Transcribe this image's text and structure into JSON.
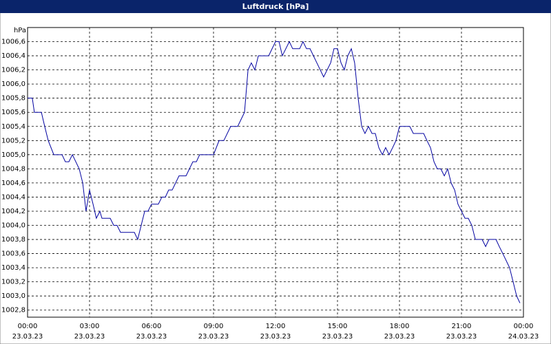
{
  "chart_data": {
    "type": "line",
    "title": "Luftdruck [hPa]",
    "y_label": "hPa",
    "x": [
      0,
      0.23,
      0.33,
      0.67,
      0.83,
      1,
      1.27,
      1.67,
      1.83,
      2,
      2.17,
      2.5,
      2.67,
      2.83,
      3,
      3.17,
      3.33,
      3.5,
      3.6,
      4,
      4.17,
      4.33,
      4.5,
      5.17,
      5.33,
      5.67,
      5.83,
      6,
      6.33,
      6.5,
      6.67,
      6.83,
      7,
      7.33,
      7.67,
      8,
      8.17,
      8.33,
      9,
      9.27,
      9.5,
      9.83,
      10.17,
      10.5,
      10.67,
      10.83,
      11,
      11.17,
      11.67,
      12,
      12.17,
      12.33,
      12.67,
      12.83,
      13.17,
      13.33,
      13.5,
      13.67,
      14,
      14.33,
      14.67,
      14.83,
      15,
      15.17,
      15.33,
      15.5,
      15.67,
      15.83,
      16,
      16.17,
      16.33,
      16.5,
      16.67,
      16.83,
      17,
      17.17,
      17.33,
      17.5,
      17.67,
      17.83,
      18,
      18.5,
      18.67,
      19.17,
      19.33,
      19.5,
      19.67,
      19.83,
      20,
      20.17,
      20.33,
      20.5,
      20.67,
      20.83,
      21,
      21.17,
      21.33,
      21.5,
      21.67,
      22,
      22.17,
      22.33,
      22.67,
      22.83,
      23,
      23.33,
      23.5,
      23.67,
      23.83
    ],
    "series": [
      {
        "color": "#0000a0",
        "values": [
          1005.8,
          1005.8,
          1005.6,
          1005.6,
          1005.4,
          1005.2,
          1005.0,
          1005.0,
          1004.9,
          1004.9,
          1005.0,
          1004.8,
          1004.6,
          1004.2,
          1004.5,
          1004.3,
          1004.1,
          1004.2,
          1004.1,
          1004.1,
          1004.0,
          1004.0,
          1003.9,
          1003.9,
          1003.8,
          1004.2,
          1004.2,
          1004.3,
          1004.3,
          1004.4,
          1004.4,
          1004.5,
          1004.5,
          1004.7,
          1004.7,
          1004.9,
          1004.9,
          1005.0,
          1005.0,
          1005.2,
          1005.2,
          1005.4,
          1005.4,
          1005.6,
          1006.2,
          1006.3,
          1006.2,
          1006.4,
          1006.4,
          1006.6,
          1006.6,
          1006.4,
          1006.6,
          1006.5,
          1006.5,
          1006.6,
          1006.5,
          1006.5,
          1006.3,
          1006.1,
          1006.3,
          1006.5,
          1006.5,
          1006.3,
          1006.2,
          1006.4,
          1006.5,
          1006.3,
          1005.8,
          1005.4,
          1005.3,
          1005.4,
          1005.3,
          1005.3,
          1005.1,
          1005.0,
          1005.1,
          1005.0,
          1005.1,
          1005.2,
          1005.4,
          1005.4,
          1005.3,
          1005.3,
          1005.2,
          1005.1,
          1004.9,
          1004.8,
          1004.8,
          1004.7,
          1004.8,
          1004.6,
          1004.5,
          1004.3,
          1004.2,
          1004.1,
          1004.1,
          1004.0,
          1003.8,
          1003.8,
          1003.7,
          1003.8,
          1003.8,
          1003.7,
          1003.6,
          1003.4,
          1003.2,
          1003.0,
          1002.9
        ]
      }
    ],
    "xlim": [
      0,
      24
    ],
    "xticks": [
      {
        "value": 0,
        "label": "00:00",
        "date": "23.03.23"
      },
      {
        "value": 3,
        "label": "03:00",
        "date": "23.03.23"
      },
      {
        "value": 6,
        "label": "06:00",
        "date": "23.03.23"
      },
      {
        "value": 9,
        "label": "09:00",
        "date": "23.03.23"
      },
      {
        "value": 12,
        "label": "12:00",
        "date": "23.03.23"
      },
      {
        "value": 15,
        "label": "15:00",
        "date": "23.03.23"
      },
      {
        "value": 18,
        "label": "18:00",
        "date": "23.03.23"
      },
      {
        "value": 21,
        "label": "21:00",
        "date": "23.03.23"
      },
      {
        "value": 24,
        "label": "00:00",
        "date": "24.03.23"
      }
    ],
    "ylim": [
      1002.7,
      1006.8
    ],
    "yticks": [
      {
        "value": 1002.8,
        "label": "1002,8"
      },
      {
        "value": 1003.0,
        "label": "1003,0"
      },
      {
        "value": 1003.2,
        "label": "1003,2"
      },
      {
        "value": 1003.4,
        "label": "1003,4"
      },
      {
        "value": 1003.6,
        "label": "1003,6"
      },
      {
        "value": 1003.8,
        "label": "1003,8"
      },
      {
        "value": 1004.0,
        "label": "1004,0"
      },
      {
        "value": 1004.2,
        "label": "1004,2"
      },
      {
        "value": 1004.4,
        "label": "1004,4"
      },
      {
        "value": 1004.6,
        "label": "1004,6"
      },
      {
        "value": 1004.8,
        "label": "1004,8"
      },
      {
        "value": 1005.0,
        "label": "1005,0"
      },
      {
        "value": 1005.2,
        "label": "1005,2"
      },
      {
        "value": 1005.4,
        "label": "1005,4"
      },
      {
        "value": 1005.6,
        "label": "1005,6"
      },
      {
        "value": 1005.8,
        "label": "1005,8"
      },
      {
        "value": 1006.0,
        "label": "1006,0"
      },
      {
        "value": 1006.2,
        "label": "1006,2"
      },
      {
        "value": 1006.4,
        "label": "1006,4"
      },
      {
        "value": 1006.6,
        "label": "1006,6"
      }
    ],
    "grid": true
  }
}
